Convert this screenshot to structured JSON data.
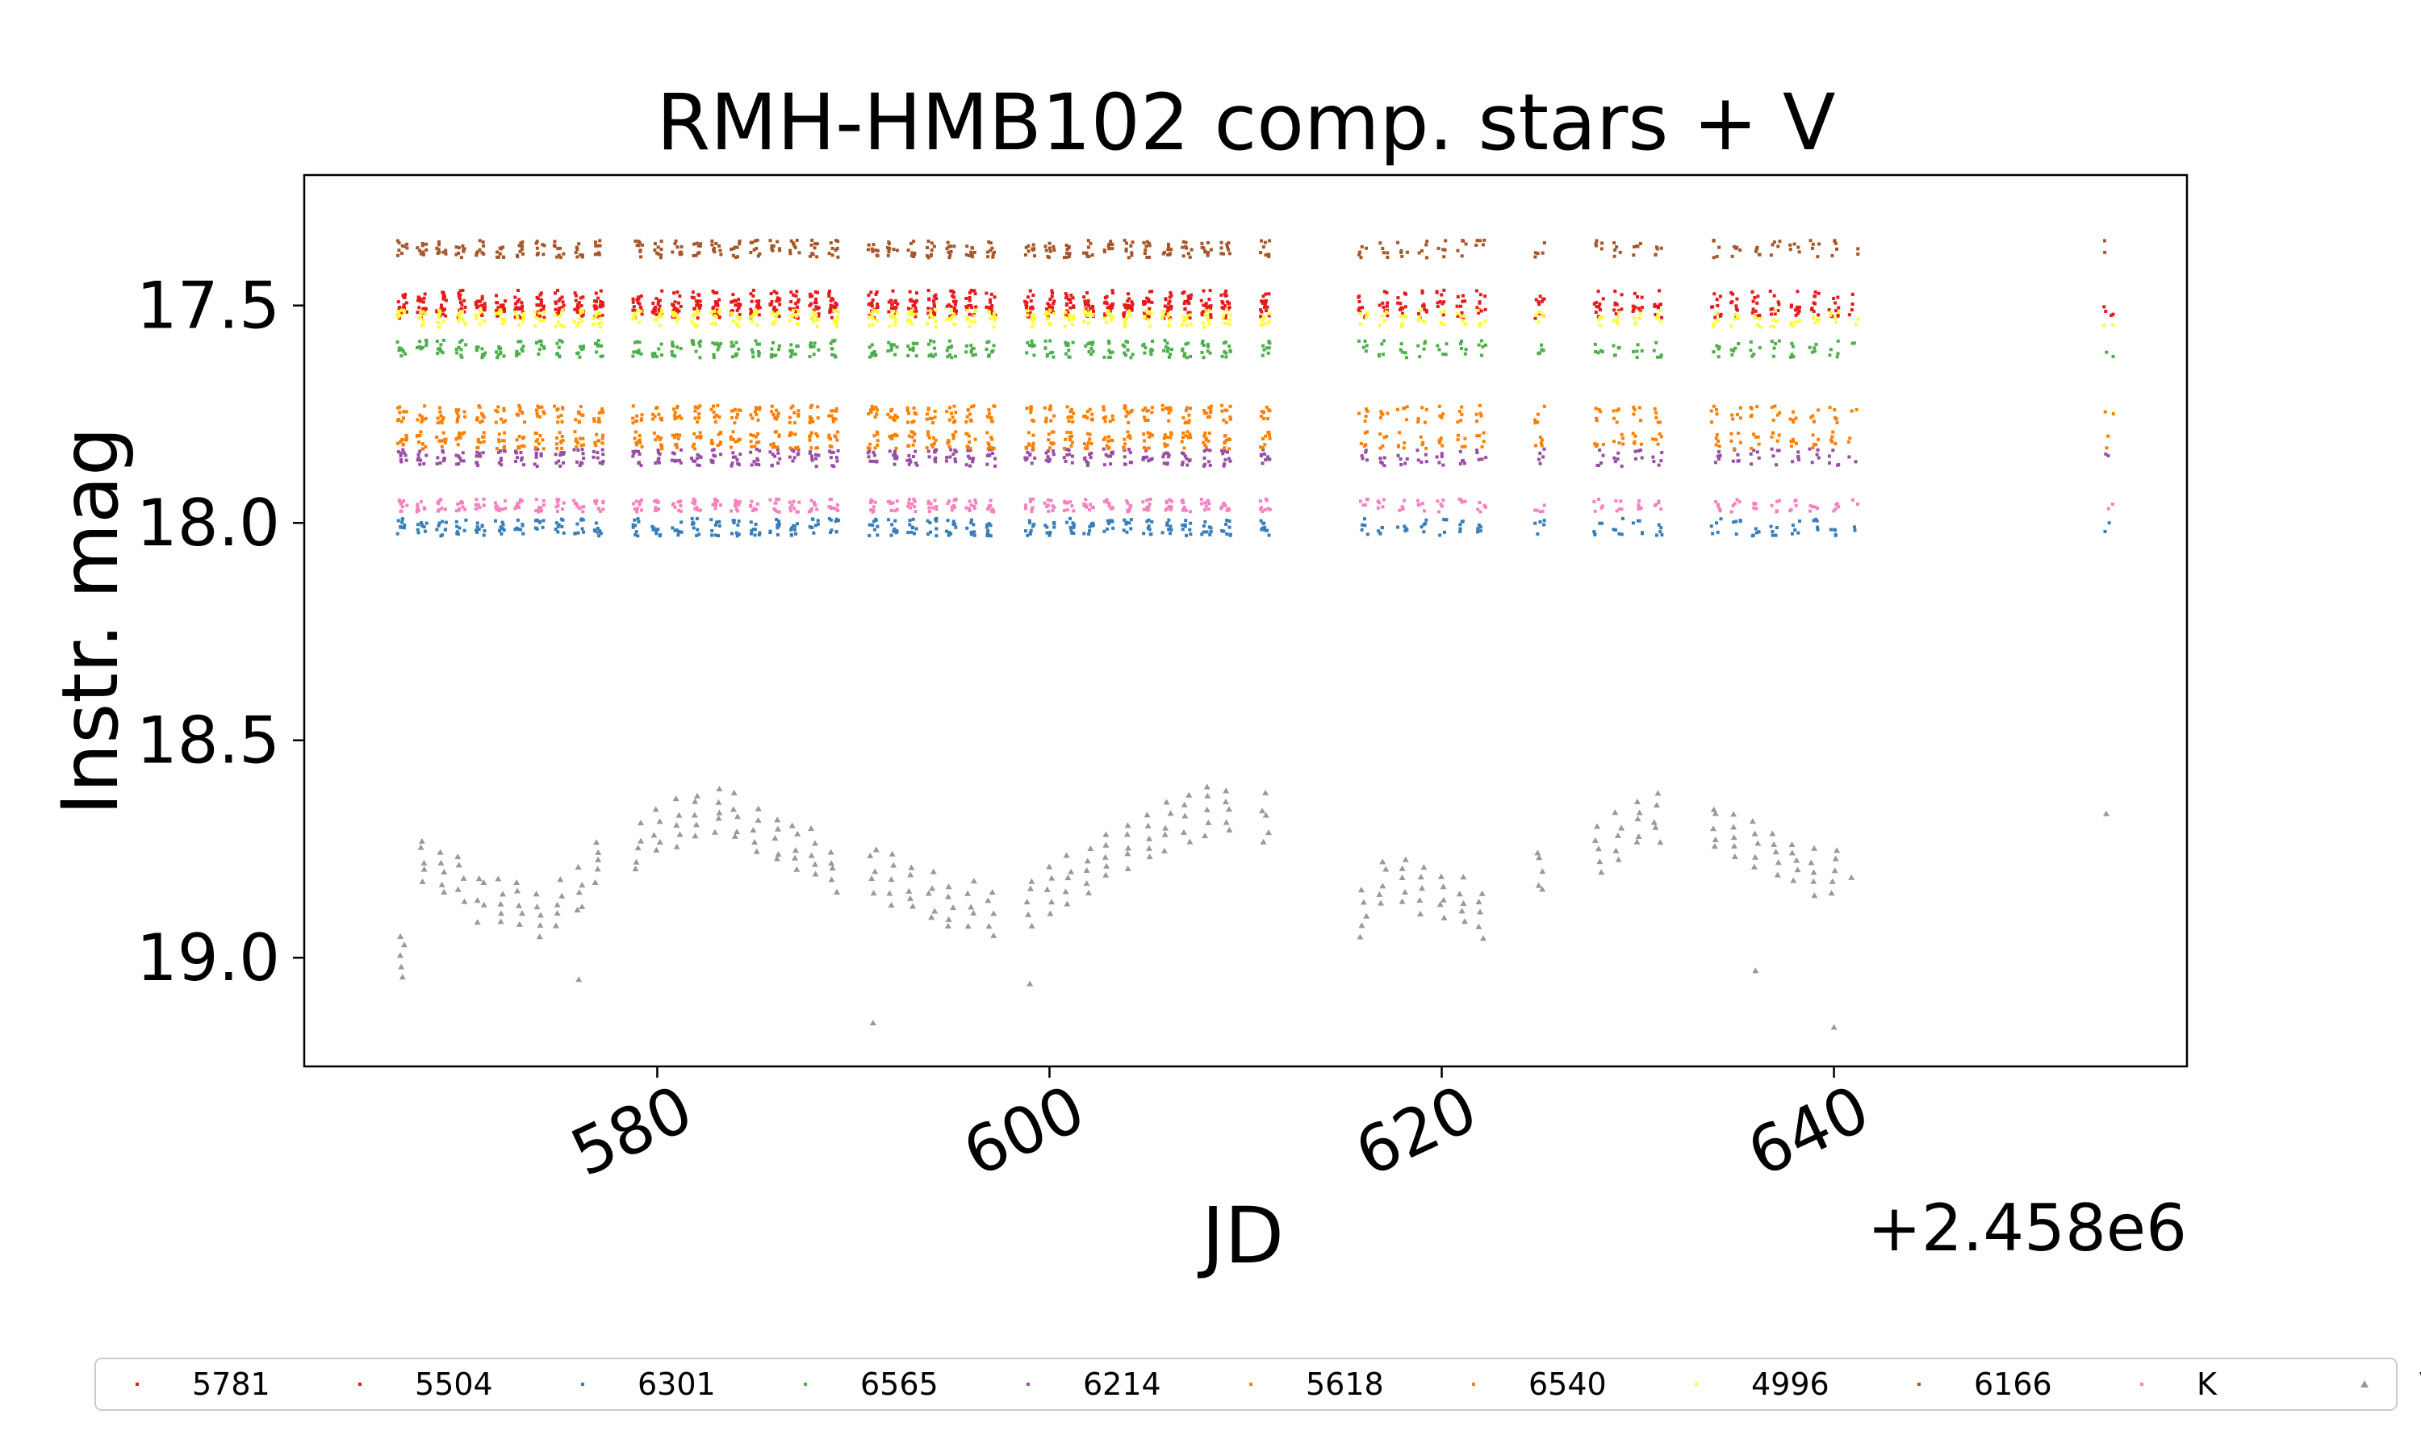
{
  "chart_data": {
    "type": "scatter",
    "title": "RMH-HMB102 comp. stars + V",
    "xlabel": "JD",
    "ylabel": "Instr. mag",
    "x_offset_label": "+2.458e6",
    "xlim": [
      562,
      658
    ],
    "ylim": [
      19.25,
      17.2
    ],
    "y_inverted": true,
    "x_ticks": [
      580,
      600,
      620,
      640
    ],
    "x_tick_labels": [
      "580",
      "600",
      "620",
      "640"
    ],
    "y_ticks": [
      17.5,
      18.0,
      18.5,
      19.0
    ],
    "y_tick_labels": [
      "17.5",
      "18.0",
      "18.5",
      "19.0"
    ],
    "grid": false,
    "legend_position": "bottom",
    "observation_nights": [
      567,
      568,
      569,
      570,
      571,
      572,
      573,
      574,
      575,
      576,
      577,
      579,
      580,
      581,
      582,
      583,
      584,
      585,
      586,
      587,
      588,
      589,
      591,
      592,
      593,
      594,
      595,
      596,
      597,
      599,
      600,
      601,
      602,
      603,
      604,
      605,
      606,
      607,
      608,
      609,
      611,
      616,
      617,
      618,
      619,
      620,
      621,
      622,
      625,
      628,
      629,
      630,
      631,
      634,
      635,
      636,
      637,
      638,
      639,
      640,
      641,
      654
    ],
    "series": [
      {
        "name": "5781",
        "marker": "point",
        "color": "#e41a1c",
        "mag": 17.49,
        "scatter": 0.025
      },
      {
        "name": "5504",
        "marker": "point",
        "color": "#e41a1c",
        "mag": 17.51,
        "scatter": 0.02
      },
      {
        "name": "6301",
        "marker": "point",
        "color": "#377eb8",
        "mag": 18.01,
        "scatter": 0.02
      },
      {
        "name": "6565",
        "marker": "point",
        "color": "#4daf4a",
        "mag": 17.6,
        "scatter": 0.02
      },
      {
        "name": "6214",
        "marker": "point",
        "color": "#984ea3",
        "mag": 17.85,
        "scatter": 0.02
      },
      {
        "name": "5618",
        "marker": "point",
        "color": "#ff7f00",
        "mag": 17.75,
        "scatter": 0.02
      },
      {
        "name": "6540",
        "marker": "point",
        "color": "#ff7f00",
        "mag": 17.81,
        "scatter": 0.02
      },
      {
        "name": "4996",
        "marker": "point",
        "color": "#ffff33",
        "mag": 17.53,
        "scatter": 0.02
      },
      {
        "name": "6166",
        "marker": "point",
        "color": "#a65628",
        "mag": 17.37,
        "scatter": 0.02
      },
      {
        "name": "K",
        "marker": "point",
        "color": "#f781bf",
        "mag": 17.96,
        "scatter": 0.015
      },
      {
        "name": "V",
        "marker": "triangle",
        "color": "#999999",
        "x": [
          567,
          568,
          569,
          570,
          571,
          572,
          573,
          574,
          575,
          576,
          577,
          579,
          580,
          581,
          582,
          583,
          584,
          585,
          586,
          587,
          588,
          589,
          591,
          592,
          593,
          594,
          595,
          596,
          597,
          599,
          600,
          601,
          602,
          603,
          604,
          605,
          606,
          607,
          608,
          609,
          611,
          616,
          617,
          618,
          619,
          620,
          621,
          622,
          625,
          628,
          629,
          630,
          631,
          634,
          635,
          636,
          637,
          638,
          639,
          640,
          641,
          654
        ],
        "y": [
          19.0,
          18.78,
          18.8,
          18.82,
          18.86,
          18.87,
          18.88,
          18.9,
          18.88,
          18.85,
          18.78,
          18.75,
          18.71,
          18.69,
          18.67,
          18.66,
          18.68,
          18.71,
          18.73,
          18.75,
          18.76,
          18.8,
          18.8,
          18.82,
          18.84,
          18.86,
          18.88,
          18.88,
          18.9,
          18.87,
          18.84,
          18.82,
          18.8,
          18.76,
          18.74,
          18.72,
          18.7,
          18.68,
          18.66,
          18.66,
          18.68,
          18.9,
          18.83,
          18.82,
          18.84,
          18.86,
          18.87,
          18.9,
          18.8,
          18.75,
          18.72,
          18.69,
          18.68,
          18.7,
          18.72,
          18.74,
          18.76,
          18.78,
          18.8,
          18.8,
          18.82,
          18.67
        ],
        "outliers": [
          [
            591,
            19.15
          ],
          [
            599,
            19.06
          ],
          [
            636,
            19.03
          ],
          [
            640,
            19.16
          ],
          [
            576,
            19.05
          ]
        ]
      }
    ]
  }
}
